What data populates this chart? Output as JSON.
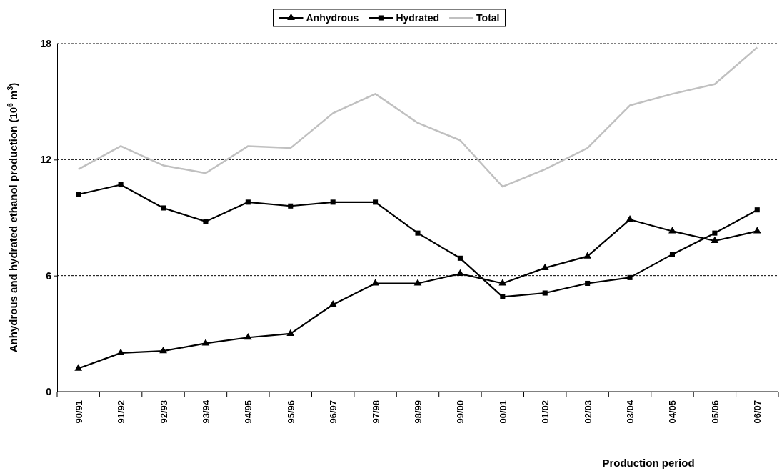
{
  "chart_data": {
    "type": "line",
    "xlabel": "Production period",
    "ylabel": "Anhydrous and hydrated ethanol production (10$^{6}$ m$^{3}$)",
    "categories": [
      "90/91",
      "91/92",
      "92/93",
      "93/94",
      "94/95",
      "95/96",
      "96/97",
      "97/98",
      "98/99",
      "99/00",
      "00/01",
      "01/02",
      "02/03",
      "03/04",
      "04/05",
      "05/06",
      "06/07"
    ],
    "series": [
      {
        "name": "Anhydrous",
        "color": "#000000",
        "marker": "triangle",
        "values": [
          1.2,
          2.0,
          2.1,
          2.5,
          2.8,
          3.0,
          4.5,
          5.6,
          5.6,
          6.1,
          5.6,
          6.4,
          7.0,
          8.9,
          8.3,
          7.8,
          8.3
        ]
      },
      {
        "name": "Hydrated",
        "color": "#000000",
        "marker": "square",
        "values": [
          10.2,
          10.7,
          9.5,
          8.8,
          9.8,
          9.6,
          9.8,
          9.8,
          8.2,
          6.9,
          4.9,
          5.1,
          5.6,
          5.9,
          7.1,
          8.2,
          9.4
        ]
      },
      {
        "name": "Total",
        "color": "#c0c0c0",
        "marker": "none",
        "values": [
          11.5,
          12.7,
          11.7,
          11.3,
          12.7,
          12.6,
          14.4,
          15.4,
          13.9,
          13.0,
          10.6,
          11.5,
          12.6,
          14.8,
          15.4,
          15.9,
          17.8
        ]
      }
    ],
    "ylim": [
      0,
      18
    ],
    "yticks": [
      0,
      6,
      12,
      18
    ],
    "grid": "y",
    "legend": "top",
    "line_style": "solid"
  }
}
